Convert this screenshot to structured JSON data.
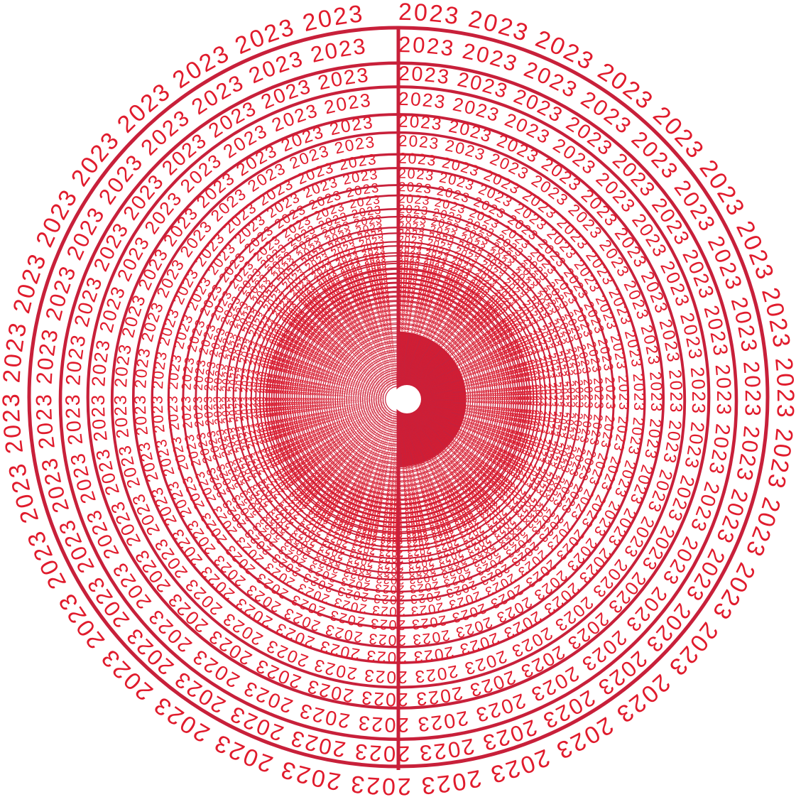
{
  "artwork": {
    "label": "2023",
    "ring_color": "#c8203a",
    "text_color": "#e01b2c",
    "background": "#ffffff"
  }
}
